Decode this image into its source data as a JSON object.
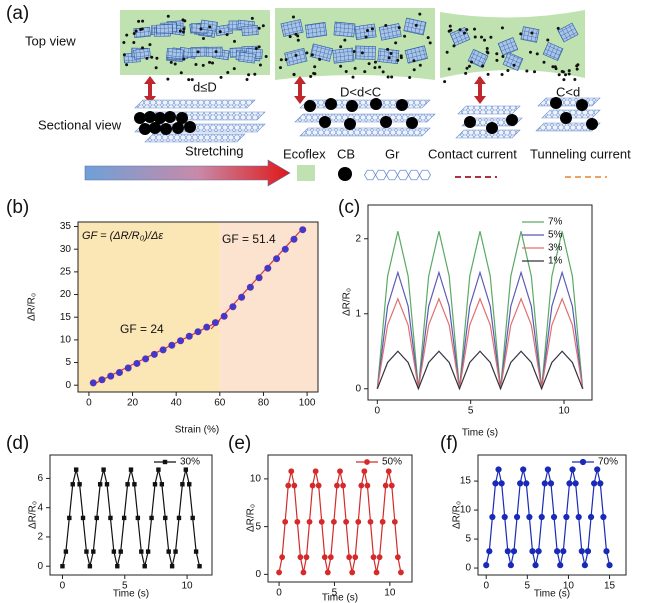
{
  "schematic": {
    "label": "(a)",
    "top_view": "Top view",
    "sectional_view": "Sectional view",
    "gaps": [
      "d≤D",
      "D<d<C",
      "C<d"
    ],
    "stretching": "Stretching",
    "legend": [
      "Ecoflex",
      "CB",
      "Gr",
      "Contact current",
      "Tunneling current"
    ]
  },
  "chart_data": [
    {
      "type": "scatter",
      "label": "(b)",
      "xlabel": "Strain (%)",
      "ylabel": "ΔR/R₀",
      "xlim": [
        -5,
        105
      ],
      "ylim": [
        -1.5,
        36
      ],
      "xticks": [
        0,
        20,
        40,
        60,
        80,
        100
      ],
      "yticks": [
        0,
        5,
        10,
        15,
        20,
        25,
        30,
        35
      ],
      "annotations": [
        "GF = (ΔR/R₀)/Δε",
        "GF = 51.4",
        "GF = 24"
      ],
      "shaded_regions": [
        {
          "from": -5,
          "to": 60,
          "color": "#fbe7b5"
        },
        {
          "from": 60,
          "to": 105,
          "color": "#fbe3cf"
        }
      ],
      "series": [
        {
          "color": "#d9323a",
          "line": true,
          "marker": "none",
          "x": [
            2,
            60
          ],
          "values": [
            0.2,
            14.2
          ]
        },
        {
          "color": "#d9323a",
          "line": true,
          "marker": "none",
          "x": [
            56,
            98
          ],
          "values": [
            12.4,
            34.6
          ]
        },
        {
          "color": "#3b3bd0",
          "line": false,
          "marker": "circle",
          "x": [
            2,
            6,
            10,
            14,
            18,
            22,
            26,
            30,
            34,
            38,
            42,
            46,
            50,
            54,
            58,
            62,
            66,
            70,
            74,
            78,
            82,
            86,
            90,
            94,
            98
          ],
          "values": [
            0.5,
            1.2,
            2.0,
            2.8,
            3.8,
            4.8,
            5.8,
            6.8,
            7.8,
            8.8,
            9.8,
            10.8,
            11.8,
            12.8,
            13.8,
            15.2,
            17.3,
            19.4,
            21.6,
            23.7,
            25.8,
            27.9,
            30.0,
            32.2,
            34.3
          ]
        }
      ]
    },
    {
      "type": "line",
      "label": "(c)",
      "xlabel": "Time (s)",
      "ylabel": "ΔR/R₀",
      "xlim": [
        -0.5,
        11.5
      ],
      "ylim": [
        -0.15,
        2.45
      ],
      "xticks": [
        0,
        5,
        10
      ],
      "yticks": [
        0,
        1,
        2
      ],
      "series": [
        {
          "name": "7%",
          "color": "#5aaa64",
          "line": true,
          "marker": "none",
          "x": [
            0,
            0.55,
            1.1,
            1.65,
            2.2,
            2.75,
            3.3,
            3.85,
            4.4,
            4.95,
            5.5,
            6.05,
            6.6,
            7.15,
            7.7,
            8.25,
            8.8,
            9.35,
            9.9,
            10.45,
            11
          ],
          "values": [
            0,
            1.5,
            2.1,
            1.5,
            0,
            1.5,
            2.1,
            1.5,
            0,
            1.5,
            2.1,
            1.5,
            0,
            1.5,
            2.1,
            1.5,
            0,
            1.5,
            2.1,
            1.5,
            0
          ]
        },
        {
          "name": "5%",
          "color": "#5a5ab4",
          "line": true,
          "marker": "none",
          "x": [
            0,
            0.55,
            1.1,
            1.65,
            2.2,
            2.75,
            3.3,
            3.85,
            4.4,
            4.95,
            5.5,
            6.05,
            6.6,
            7.15,
            7.7,
            8.25,
            8.8,
            9.35,
            9.9,
            10.45,
            11
          ],
          "values": [
            0,
            1.1,
            1.55,
            1.1,
            0,
            1.1,
            1.55,
            1.1,
            0,
            1.1,
            1.55,
            1.1,
            0,
            1.1,
            1.55,
            1.1,
            0,
            1.1,
            1.55,
            1.1,
            0
          ]
        },
        {
          "name": "3%",
          "color": "#e07070",
          "line": true,
          "marker": "none",
          "x": [
            0,
            0.55,
            1.1,
            1.65,
            2.2,
            2.75,
            3.3,
            3.85,
            4.4,
            4.95,
            5.5,
            6.05,
            6.6,
            7.15,
            7.7,
            8.25,
            8.8,
            9.35,
            9.9,
            10.45,
            11
          ],
          "values": [
            0,
            0.85,
            1.2,
            0.85,
            0,
            0.85,
            1.2,
            0.85,
            0,
            0.85,
            1.2,
            0.85,
            0,
            0.85,
            1.2,
            0.85,
            0,
            0.85,
            1.2,
            0.85,
            0
          ]
        },
        {
          "name": "1%",
          "color": "#333344",
          "line": true,
          "marker": "none",
          "x": [
            0,
            0.55,
            1.1,
            1.65,
            2.2,
            2.75,
            3.3,
            3.85,
            4.4,
            4.95,
            5.5,
            6.05,
            6.6,
            7.15,
            7.7,
            8.25,
            8.8,
            9.35,
            9.9,
            10.45,
            11
          ],
          "values": [
            0,
            0.35,
            0.5,
            0.35,
            0,
            0.35,
            0.5,
            0.35,
            0,
            0.35,
            0.5,
            0.35,
            0,
            0.35,
            0.5,
            0.35,
            0,
            0.35,
            0.5,
            0.35,
            0
          ]
        }
      ]
    },
    {
      "type": "line",
      "label": "(d)",
      "xlabel": "Time (s)",
      "ylabel": "ΔR/R₀",
      "xlim": [
        -1,
        12
      ],
      "ylim": [
        -0.6,
        7.6
      ],
      "xticks": [
        0,
        5,
        10
      ],
      "yticks": [
        0,
        2,
        4,
        6
      ],
      "series": [
        {
          "name": "30%",
          "color": "#111111",
          "line": true,
          "marker": "square",
          "x": [
            0,
            0.275,
            0.55,
            0.825,
            1.1,
            1.375,
            1.65,
            1.925,
            2.2,
            2.475,
            2.75,
            3.025,
            3.3,
            3.575,
            3.85,
            4.125,
            4.4,
            4.675,
            4.95,
            5.225,
            5.5,
            5.775,
            6.05,
            6.325,
            6.6,
            6.875,
            7.15,
            7.425,
            7.7,
            7.975,
            8.25,
            8.525,
            8.8,
            9.075,
            9.35,
            9.625,
            9.9,
            10.175,
            10.45,
            10.725,
            11
          ],
          "values": [
            0,
            1,
            3.3,
            5.6,
            6.6,
            5.6,
            3.3,
            1,
            0,
            1,
            3.3,
            5.6,
            6.6,
            5.6,
            3.3,
            1,
            0,
            1,
            3.3,
            5.6,
            6.6,
            5.6,
            3.3,
            1,
            0,
            1,
            3.3,
            5.6,
            6.6,
            5.6,
            3.3,
            1,
            0,
            1,
            3.3,
            5.6,
            6.6,
            5.6,
            3.3,
            1,
            0
          ]
        }
      ]
    },
    {
      "type": "line",
      "label": "(e)",
      "xlabel": "Time (s)",
      "ylabel": "ΔR/R₀",
      "xlim": [
        -1,
        12
      ],
      "ylim": [
        -0.8,
        12.5
      ],
      "xticks": [
        0,
        5,
        10
      ],
      "yticks": [
        0,
        5,
        10
      ],
      "series": [
        {
          "name": "50%",
          "color": "#d42a2a",
          "line": true,
          "marker": "circle",
          "x": [
            0,
            0.275,
            0.55,
            0.825,
            1.1,
            1.375,
            1.65,
            1.925,
            2.2,
            2.475,
            2.75,
            3.025,
            3.3,
            3.575,
            3.85,
            4.125,
            4.4,
            4.675,
            4.95,
            5.225,
            5.5,
            5.775,
            6.05,
            6.325,
            6.6,
            6.875,
            7.15,
            7.425,
            7.7,
            7.975,
            8.25,
            8.525,
            8.8,
            9.075,
            9.35,
            9.625,
            9.9,
            10.175,
            10.45,
            10.725,
            11
          ],
          "values": [
            0.2,
            1.8,
            5.5,
            9.3,
            10.8,
            9.3,
            5.5,
            1.8,
            0.2,
            1.8,
            5.5,
            9.3,
            10.8,
            9.3,
            5.5,
            1.8,
            0.2,
            1.8,
            5.5,
            9.3,
            10.8,
            9.3,
            5.5,
            1.8,
            0.2,
            1.8,
            5.5,
            9.3,
            10.8,
            9.3,
            5.5,
            1.8,
            0.2,
            1.8,
            5.5,
            9.3,
            10.8,
            9.3,
            5.5,
            1.8,
            0.2
          ]
        }
      ]
    },
    {
      "type": "line",
      "label": "(f)",
      "xlabel": "Time (s)",
      "ylabel": "ΔR/R₀",
      "xlim": [
        -1,
        17
      ],
      "ylim": [
        -1.2,
        19.5
      ],
      "xticks": [
        0,
        5,
        10,
        15
      ],
      "yticks": [
        0,
        5,
        10,
        15
      ],
      "series": [
        {
          "name": "70%",
          "color": "#1a2ab8",
          "line": true,
          "marker": "circle",
          "x": [
            0,
            0.375,
            0.75,
            1.125,
            1.5,
            1.875,
            2.25,
            2.625,
            3,
            3.375,
            3.75,
            4.125,
            4.5,
            4.875,
            5.25,
            5.625,
            6,
            6.375,
            6.75,
            7.125,
            7.5,
            7.875,
            8.25,
            8.625,
            9,
            9.375,
            9.75,
            10.125,
            10.5,
            10.875,
            11.25,
            11.625,
            12,
            12.375,
            12.75,
            13.125,
            13.5,
            13.875,
            14.25,
            14.625,
            15
          ],
          "values": [
            0.5,
            2.9,
            8.8,
            14.6,
            17,
            14.6,
            8.8,
            2.9,
            0.5,
            2.9,
            8.8,
            14.6,
            17,
            14.6,
            8.8,
            2.9,
            0.5,
            2.9,
            8.8,
            14.6,
            17,
            14.6,
            8.8,
            2.9,
            0.5,
            2.9,
            8.8,
            14.6,
            17,
            14.6,
            8.8,
            2.9,
            0.5,
            2.9,
            8.8,
            14.6,
            17,
            14.6,
            8.8,
            2.9,
            0.5
          ]
        }
      ]
    }
  ]
}
